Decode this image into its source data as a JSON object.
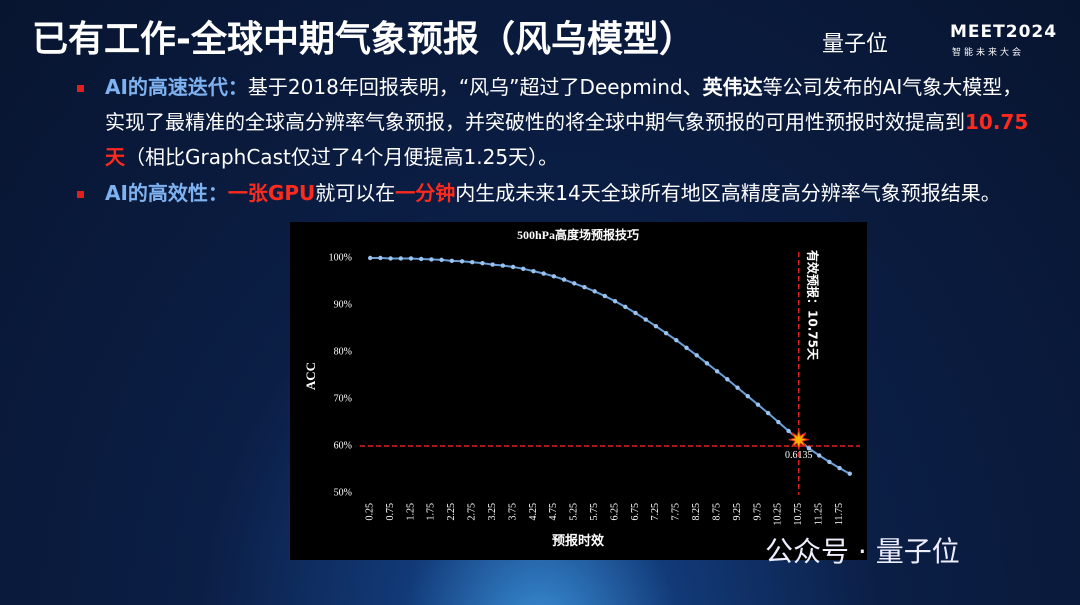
{
  "slide": {
    "title": "已有工作-全球中期气象预报（风乌模型）",
    "logo": "量子位",
    "event": "MEET2024",
    "event_sub": "智能未来大会",
    "watermark": "公众号 · 量子位",
    "bullets": [
      [
        "AI的高速迭代：",
        "基于2018年回报表明，“风乌”超过了Deepmind、",
        "英伟达",
        "等公司发布的AI气象大模型，实现了最精准的全球高分辨率气象预报，并突破性的将全球中期气象预报的可用性预报时效提高到",
        "10.75天",
        "（相比GraphCast仅过了4个月便提高1.25天）。"
      ],
      [
        "AI的高效性：",
        "一张GPU",
        "就可以在",
        "一分钟",
        "内生成未来14天全球所有地区高精度高分辨率气象预报结果。"
      ]
    ]
  },
  "chart_data": {
    "type": "line",
    "title": "500hPa高度场预报技巧",
    "x_label": "预报时效",
    "y_label": "ACC",
    "color": "#6a9fd8",
    "x": [
      0.25,
      0.5,
      0.75,
      1.0,
      1.25,
      1.5,
      1.75,
      2.0,
      2.25,
      2.5,
      2.75,
      3.0,
      3.25,
      3.5,
      3.75,
      4.0,
      4.25,
      4.5,
      4.75,
      5.0,
      5.25,
      5.5,
      5.75,
      6.0,
      6.25,
      6.5,
      6.75,
      7.0,
      7.25,
      7.5,
      7.75,
      8.0,
      8.25,
      8.5,
      8.75,
      9.0,
      9.25,
      9.5,
      9.75,
      10.0,
      10.25,
      10.5,
      10.75,
      11.0,
      11.25,
      11.5,
      11.75,
      12.0
    ],
    "values": [
      100,
      100,
      99.9,
      99.9,
      99.9,
      99.8,
      99.7,
      99.6,
      99.4,
      99.3,
      99.1,
      98.9,
      98.6,
      98.4,
      98.1,
      97.7,
      97.2,
      96.7,
      96.1,
      95.4,
      94.6,
      93.8,
      92.9,
      91.9,
      90.8,
      89.6,
      88.3,
      86.9,
      85.5,
      84.0,
      82.5,
      80.9,
      79.3,
      77.6,
      75.9,
      74.2,
      72.4,
      70.6,
      68.8,
      67.0,
      65.1,
      63.2,
      61.35,
      59.5,
      58.0,
      56.6,
      55.3,
      54.1
    ],
    "xlim": [
      0,
      12.25
    ],
    "xticks": [
      0.25,
      0.75,
      1.25,
      1.75,
      2.25,
      2.75,
      3.25,
      3.75,
      4.25,
      4.75,
      5.25,
      5.75,
      6.25,
      6.75,
      7.25,
      7.75,
      8.25,
      8.75,
      9.25,
      9.75,
      10.25,
      10.75,
      11.25,
      11.75
    ],
    "ylim": [
      50,
      100
    ],
    "yticks": [
      {
        "value": 50,
        "label": "50%"
      },
      {
        "value": 60,
        "label": "60%"
      },
      {
        "value": 70,
        "label": "70%"
      },
      {
        "value": 80,
        "label": "80%"
      },
      {
        "value": 90,
        "label": "90%"
      },
      {
        "value": 100,
        "label": "100%"
      }
    ],
    "threshold": {
      "x": 10.75,
      "y": 60,
      "color": "#e0201e"
    },
    "threshold_label": "有效预报：10.75天",
    "point_label": "0.6135"
  }
}
